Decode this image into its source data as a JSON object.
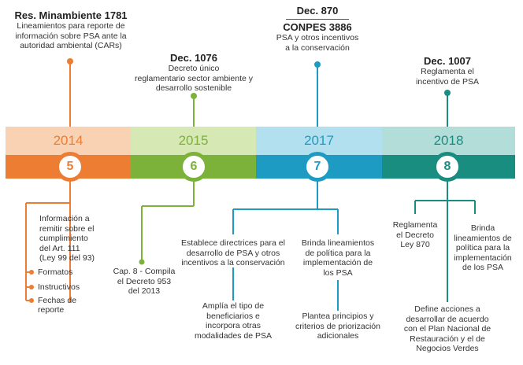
{
  "colors": {
    "orange": "#ec7d32",
    "orange_light": "#f9d2b4",
    "green": "#7cb23a",
    "green_light": "#d6e8b4",
    "blue": "#1d9bc2",
    "blue_light": "#b3e0ef",
    "teal": "#1a8d81",
    "teal_light": "#b3ddd8"
  },
  "periods": [
    {
      "year": "2014",
      "number": "5"
    },
    {
      "year": "2015",
      "number": "6"
    },
    {
      "year": "2017",
      "number": "7"
    },
    {
      "year": "2018",
      "number": "8"
    }
  ],
  "top": {
    "p2014": {
      "title": "Res. Minambiente 1781",
      "text": [
        "Lineamientos para reporte de",
        "información sobre PSA ante la",
        "autoridad ambiental (CARs)"
      ]
    },
    "p2015": {
      "title": "Dec. 1076",
      "text": [
        "Decreto único",
        "reglamentario sector ambiente y",
        "desarrollo sostenible"
      ]
    },
    "p2017": {
      "title_a": "Dec. 870",
      "title_b": "CONPES 3886",
      "text": [
        "PSA y otros incentivos",
        "a la conservación"
      ]
    },
    "p2018": {
      "title": "Dec. 1007",
      "text": [
        "Reglamenta el",
        "incentivo de PSA"
      ]
    }
  },
  "bottom": {
    "p2014": {
      "main": [
        "Información a",
        "remitir sobre el",
        "cumplimiento",
        "del Art. 111",
        "(Ley 99 del 93)"
      ],
      "items": [
        "Formatos",
        "Instructivos",
        "Fechas de",
        "reporte"
      ]
    },
    "p2015": {
      "text": [
        "Cap. 8 - Compila",
        "el Decreto 953",
        "del 2013"
      ]
    },
    "p2017": {
      "left_a": [
        "Establece directrices para el",
        "desarrollo de PSA y otros",
        "incentivos a la conservación"
      ],
      "left_b": [
        "Amplía el tipo de",
        "beneficiarios e",
        "incorpora otras",
        "modalidades de PSA"
      ],
      "right_a": [
        "Brinda lineamientos",
        "de política para la",
        "implementación de",
        "los PSA"
      ],
      "right_b": [
        "Plantea principios y",
        "criterios de priorización",
        "adicionales"
      ]
    },
    "p2018": {
      "left": [
        "Reglamenta",
        "el Decreto",
        "Ley 870"
      ],
      "right": [
        "Brinda",
        "lineamientos de",
        "política para la",
        "implementación",
        "de los PSA"
      ],
      "bottom": [
        "Define acciones a",
        "desarrollar  de acuerdo",
        "con el Plan Nacional  de",
        "Restauración y el de",
        "Negocios Verdes"
      ]
    }
  }
}
